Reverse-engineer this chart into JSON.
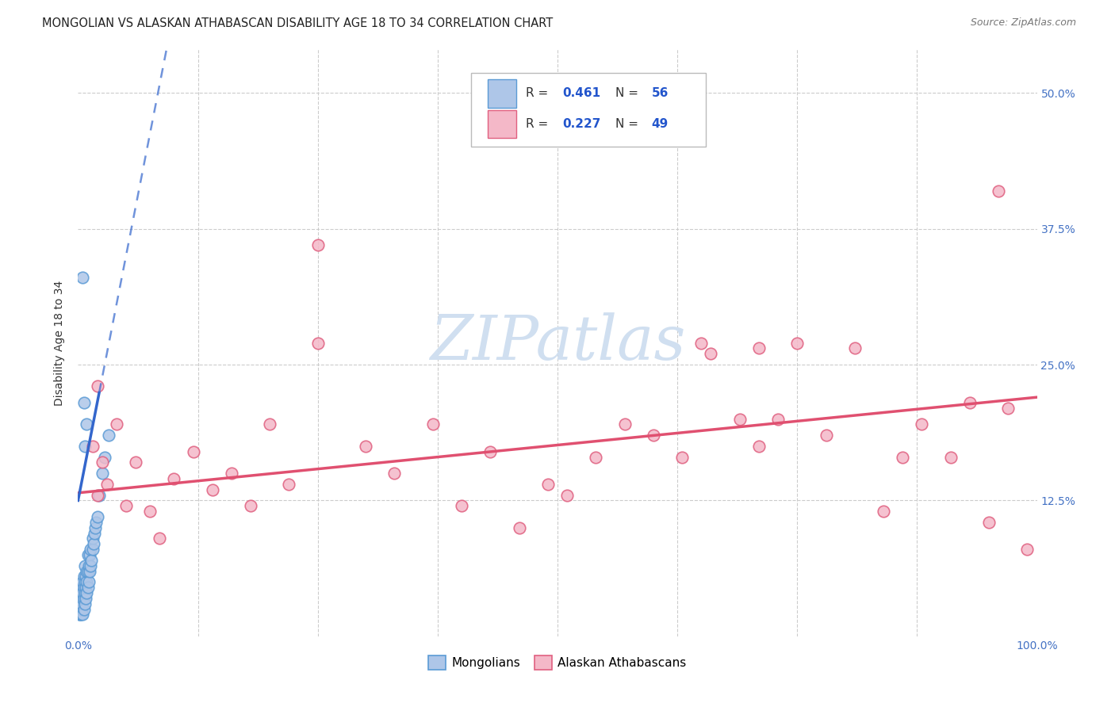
{
  "title": "MONGOLIAN VS ALASKAN ATHABASCAN DISABILITY AGE 18 TO 34 CORRELATION CHART",
  "source": "Source: ZipAtlas.com",
  "ylabel": "Disability Age 18 to 34",
  "xlim": [
    0.0,
    1.0
  ],
  "ylim": [
    0.0,
    0.54
  ],
  "mongolian_color": "#aec6e8",
  "athabascan_color": "#f4b8c8",
  "mongolian_edge": "#5b9bd5",
  "athabascan_edge": "#e06080",
  "trend_mongolian_color": "#3366cc",
  "trend_athabascan_color": "#e05070",
  "legend_label1": "Mongolians",
  "legend_label2": "Alaskan Athabascans",
  "background_color": "#ffffff",
  "grid_color": "#cccccc",
  "watermark_color": "#d0dff0",
  "tick_color": "#4472c4",
  "label_color": "#333333"
}
